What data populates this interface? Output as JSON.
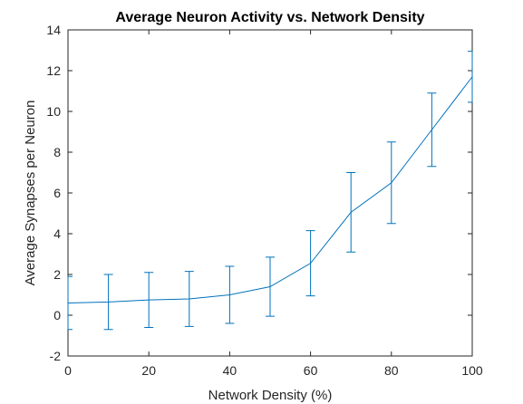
{
  "chart_data": {
    "type": "line",
    "title": "Average Neuron Activity vs. Network Density",
    "xlabel": "Network Density (%)",
    "ylabel": "Average Synapses per Neuron",
    "xlim": [
      0,
      100
    ],
    "ylim": [
      -2,
      14
    ],
    "xticks": [
      0,
      20,
      40,
      60,
      80,
      100
    ],
    "yticks": [
      -2,
      0,
      2,
      4,
      6,
      8,
      10,
      12,
      14
    ],
    "grid": false,
    "series": [
      {
        "name": "Average Synapses per Neuron",
        "color": "#0072bd",
        "x": [
          0,
          10,
          20,
          30,
          40,
          50,
          60,
          70,
          80,
          90,
          100
        ],
        "y": [
          0.6,
          0.65,
          0.75,
          0.8,
          1.0,
          1.4,
          2.55,
          5.05,
          6.5,
          9.1,
          11.7
        ],
        "err": [
          1.3,
          1.35,
          1.35,
          1.35,
          1.4,
          1.45,
          1.6,
          1.95,
          2.0,
          1.8,
          1.25
        ]
      }
    ]
  }
}
